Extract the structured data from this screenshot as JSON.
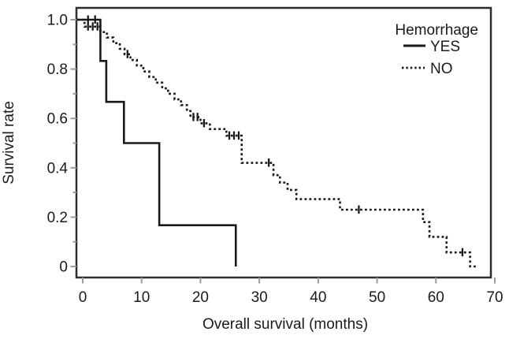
{
  "figure": {
    "background": "#ffffff"
  },
  "chart_data": {
    "type": "line",
    "subtype": "kaplan-meier-step-curve",
    "title": "",
    "xlabel": "Overall survival (months)",
    "ylabel": "Survival rate",
    "xlim": [
      0,
      70
    ],
    "ylim": [
      0,
      1.0
    ],
    "grid": false,
    "x_ticks": [
      {
        "v": 0,
        "label": "0"
      },
      {
        "v": 10,
        "label": "10"
      },
      {
        "v": 20,
        "label": "20"
      },
      {
        "v": 30,
        "label": "30"
      },
      {
        "v": 40,
        "label": "40"
      },
      {
        "v": 50,
        "label": "50"
      },
      {
        "v": 60,
        "label": "60"
      },
      {
        "v": 70,
        "label": "70"
      }
    ],
    "y_ticks": [
      {
        "v": 0,
        "label": "0"
      },
      {
        "v": 0.2,
        "label": "0.2"
      },
      {
        "v": 0.4,
        "label": "0.4"
      },
      {
        "v": 0.6,
        "label": "0.6"
      },
      {
        "v": 0.8,
        "label": "0.8"
      },
      {
        "v": 1.0,
        "label": "1.0"
      }
    ],
    "y_minor_ticks": [
      0.1,
      0.3,
      0.5,
      0.7,
      0.9
    ],
    "legend": {
      "title": "Hemorrhage",
      "position": "top-right",
      "entries": [
        {
          "label": "YES",
          "style": "solid"
        },
        {
          "label": "NO",
          "style": "dotted"
        }
      ]
    },
    "colors": {
      "line": "#1a1a1a",
      "frame": "#2d2d2d",
      "tick": "#9a9a9a",
      "text": "#1a1a1a"
    },
    "series": [
      {
        "name": "YES",
        "style": "solid",
        "steps": [
          [
            0,
            1.0
          ],
          [
            3,
            0.833
          ],
          [
            4,
            0.667
          ],
          [
            7,
            0.5
          ],
          [
            13,
            0.167
          ],
          [
            26,
            0
          ]
        ],
        "end": 26,
        "censor_marks": [
          [
            0.9,
            1.0
          ],
          [
            2.1,
            1.0
          ]
        ]
      },
      {
        "name": "NO",
        "style": "dotted",
        "steps": [
          [
            0,
            1.0
          ],
          [
            0.3,
            0.972
          ],
          [
            3.0,
            0.95
          ],
          [
            4.1,
            0.928
          ],
          [
            5.2,
            0.905
          ],
          [
            6.3,
            0.882
          ],
          [
            7.1,
            0.86
          ],
          [
            8.1,
            0.837
          ],
          [
            9.2,
            0.814
          ],
          [
            10.3,
            0.79
          ],
          [
            11.3,
            0.768
          ],
          [
            12.4,
            0.745
          ],
          [
            13.5,
            0.722
          ],
          [
            14.5,
            0.7
          ],
          [
            15.6,
            0.677
          ],
          [
            16.7,
            0.654
          ],
          [
            17.7,
            0.63
          ],
          [
            18.3,
            0.605
          ],
          [
            20.0,
            0.58
          ],
          [
            21.6,
            0.557
          ],
          [
            24.4,
            0.53
          ],
          [
            27.0,
            0.42
          ],
          [
            32.4,
            0.37
          ],
          [
            33.5,
            0.34
          ],
          [
            34.8,
            0.31
          ],
          [
            36.3,
            0.273
          ],
          [
            43.7,
            0.23
          ],
          [
            57.8,
            0.18
          ],
          [
            58.9,
            0.12
          ],
          [
            61.8,
            0.057
          ],
          [
            65.8,
            0
          ]
        ],
        "end": 67,
        "censor_marks": [
          [
            0.9,
            0.972
          ],
          [
            1.7,
            0.972
          ],
          [
            2.5,
            0.972
          ],
          [
            7.6,
            0.86
          ],
          [
            18.8,
            0.605
          ],
          [
            19.5,
            0.605
          ],
          [
            20.6,
            0.58
          ],
          [
            24.9,
            0.53
          ],
          [
            25.7,
            0.53
          ],
          [
            26.5,
            0.53
          ],
          [
            31.6,
            0.42
          ],
          [
            46.9,
            0.23
          ],
          [
            64.5,
            0.057
          ]
        ]
      }
    ]
  }
}
